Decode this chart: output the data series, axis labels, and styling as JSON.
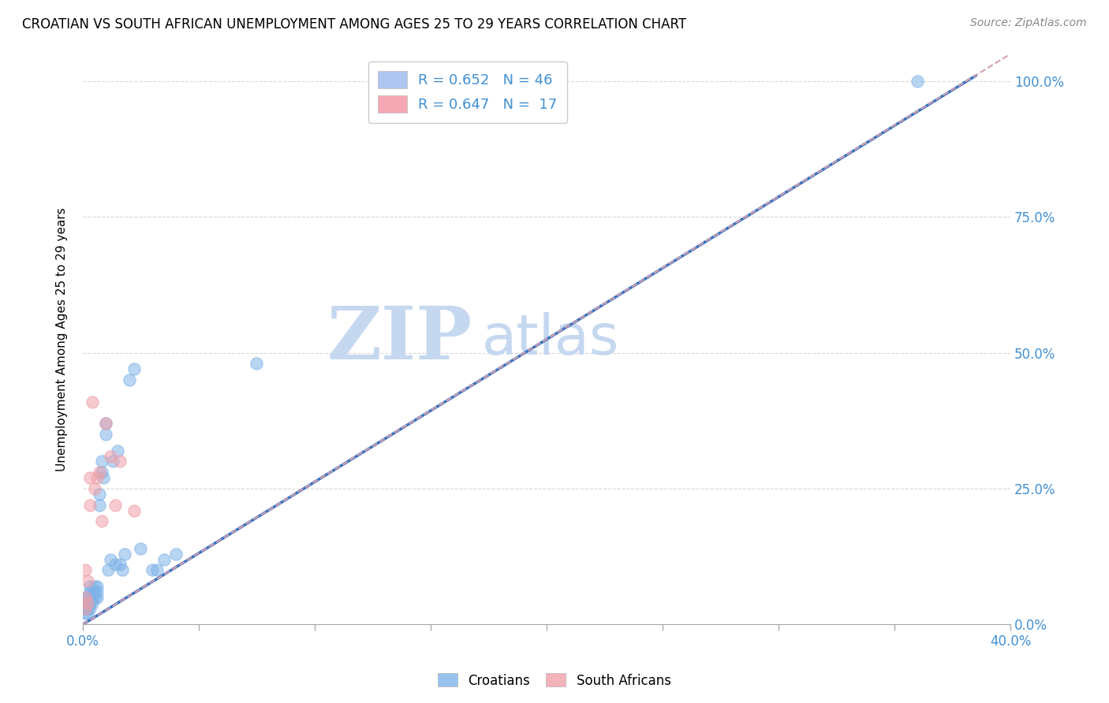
{
  "title": "CROATIAN VS SOUTH AFRICAN UNEMPLOYMENT AMONG AGES 25 TO 29 YEARS CORRELATION CHART",
  "source": "Source: ZipAtlas.com",
  "ylabel": "Unemployment Among Ages 25 to 29 years",
  "xlim": [
    0.0,
    0.4
  ],
  "ylim": [
    0.0,
    1.05
  ],
  "xticks": [
    0.0,
    0.05,
    0.1,
    0.15,
    0.2,
    0.25,
    0.3,
    0.35,
    0.4
  ],
  "yticks": [
    0.0,
    0.25,
    0.5,
    0.75,
    1.0
  ],
  "legend_entries": [
    {
      "label": "R = 0.652   N = 46",
      "color": "#aec6f0"
    },
    {
      "label": "R = 0.647   N =  17",
      "color": "#f4a7b2"
    }
  ],
  "croatian_scatter_x": [
    0.001,
    0.001,
    0.001,
    0.001,
    0.002,
    0.002,
    0.002,
    0.002,
    0.003,
    0.003,
    0.003,
    0.003,
    0.003,
    0.004,
    0.004,
    0.004,
    0.005,
    0.005,
    0.005,
    0.006,
    0.006,
    0.006,
    0.007,
    0.007,
    0.008,
    0.008,
    0.009,
    0.01,
    0.01,
    0.011,
    0.012,
    0.013,
    0.014,
    0.015,
    0.016,
    0.017,
    0.018,
    0.02,
    0.022,
    0.025,
    0.03,
    0.032,
    0.035,
    0.04,
    0.075,
    0.36
  ],
  "croatian_scatter_y": [
    0.02,
    0.03,
    0.04,
    0.05,
    0.02,
    0.03,
    0.04,
    0.05,
    0.03,
    0.04,
    0.05,
    0.06,
    0.07,
    0.04,
    0.05,
    0.06,
    0.05,
    0.06,
    0.07,
    0.05,
    0.06,
    0.07,
    0.22,
    0.24,
    0.28,
    0.3,
    0.27,
    0.35,
    0.37,
    0.1,
    0.12,
    0.3,
    0.11,
    0.32,
    0.11,
    0.1,
    0.13,
    0.45,
    0.47,
    0.14,
    0.1,
    0.1,
    0.12,
    0.13,
    0.48,
    1.0
  ],
  "sa_scatter_x": [
    0.001,
    0.001,
    0.001,
    0.002,
    0.002,
    0.003,
    0.003,
    0.004,
    0.005,
    0.006,
    0.007,
    0.008,
    0.01,
    0.012,
    0.014,
    0.016,
    0.022
  ],
  "sa_scatter_y": [
    0.03,
    0.05,
    0.1,
    0.04,
    0.08,
    0.22,
    0.27,
    0.41,
    0.25,
    0.27,
    0.28,
    0.19,
    0.37,
    0.31,
    0.22,
    0.3,
    0.21
  ],
  "blue_line": {
    "x0": 0.0,
    "y0": 0.0,
    "x1": 0.385,
    "y1": 1.01
  },
  "pink_line": {
    "x0": 0.0,
    "y0": 0.0,
    "x1": 0.4,
    "y1": 1.05
  },
  "scatter_color_blue": "#7fb3e8",
  "scatter_color_pink": "#f0a0a8",
  "line_color_blue": "#3070c0",
  "line_color_pink": "#d8a0b0",
  "watermark_zip": "ZIP",
  "watermark_atlas": "atlas",
  "watermark_color": "#c5d8f0",
  "background_color": "#ffffff",
  "title_fontsize": 12,
  "source_fontsize": 10,
  "axis_label_color": "#4090d0",
  "grid_color": "#d8d8d8"
}
